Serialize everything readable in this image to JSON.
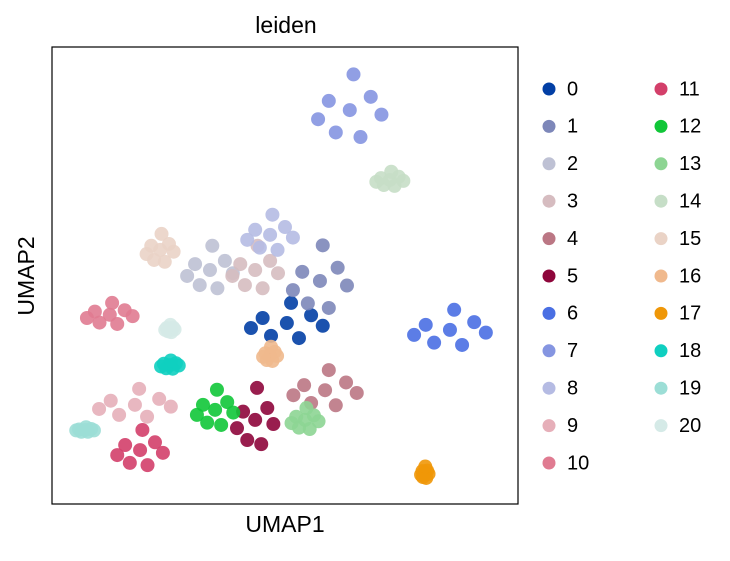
{
  "chart_data": {
    "type": "scatter",
    "title": "leiden",
    "x_label": "UMAP1",
    "y_label": "UMAP2",
    "xlim": [
      0,
      100
    ],
    "ylim": [
      0,
      100
    ],
    "legend": "right",
    "series": [
      {
        "name": "0",
        "color": "#023fa5",
        "x": [
          50.4,
          55.6,
          45.2,
          53.0,
          47.0,
          58.1,
          42.7,
          51.3
        ],
        "y": [
          39.6,
          41.3,
          40.7,
          36.3,
          36.8,
          39.0,
          38.5,
          44.0
        ]
      },
      {
        "name": "1",
        "color": "#7d87b9",
        "x": [
          57.5,
          61.3,
          53.7,
          59.4,
          54.9,
          63.3,
          51.7,
          58.1
        ],
        "y": [
          48.8,
          51.7,
          50.8,
          42.9,
          43.9,
          47.8,
          46.8,
          56.6
        ]
      },
      {
        "name": "2",
        "color": "#bec1d4",
        "x": [
          33.9,
          37.1,
          30.7,
          35.5,
          31.7,
          38.8,
          29.0,
          34.4
        ],
        "y": [
          51.2,
          53.2,
          52.5,
          47.2,
          47.9,
          50.5,
          49.9,
          56.5
        ]
      },
      {
        "name": "3",
        "color": "#d6bcc0",
        "x": [
          43.6,
          46.8,
          40.4,
          45.2,
          41.4,
          48.5,
          38.7,
          44.1
        ],
        "y": [
          51.2,
          53.2,
          52.5,
          47.2,
          47.9,
          50.5,
          49.9,
          56.5
        ]
      },
      {
        "name": "4",
        "color": "#bb7784",
        "x": [
          58.6,
          63.1,
          54.1,
          60.9,
          55.6,
          65.4,
          51.8,
          59.4
        ],
        "y": [
          24.9,
          26.6,
          26.0,
          21.6,
          22.1,
          24.3,
          23.8,
          29.3
        ]
      },
      {
        "name": "5",
        "color": "#8e063b",
        "x": [
          43.6,
          46.2,
          41.0,
          44.9,
          41.9,
          47.5,
          39.7,
          44.0
        ],
        "y": [
          18.4,
          21.0,
          20.2,
          13.1,
          14.0,
          17.5,
          16.6,
          25.4
        ]
      },
      {
        "name": "6",
        "color": "#4a6fe3",
        "x": [
          85.4,
          90.6,
          80.2,
          88.0,
          82.0,
          93.1,
          77.7,
          86.3
        ],
        "y": [
          38.1,
          39.8,
          39.2,
          34.8,
          35.3,
          37.5,
          37.0,
          42.5
        ]
      },
      {
        "name": "7",
        "color": "#8595e1",
        "x": [
          63.9,
          68.4,
          59.4,
          66.2,
          60.9,
          70.7,
          57.1,
          64.7
        ],
        "y": [
          86.2,
          89.1,
          88.2,
          80.3,
          81.3,
          85.2,
          84.2,
          94.0
        ]
      },
      {
        "name": "8",
        "color": "#b5bbe3",
        "x": [
          46.8,
          50.0,
          43.6,
          48.4,
          44.6,
          51.7,
          41.9,
          47.3
        ],
        "y": [
          58.9,
          60.6,
          60.0,
          55.6,
          56.1,
          58.3,
          57.8,
          63.3
        ]
      },
      {
        "name": "9",
        "color": "#e6afb9",
        "x": [
          17.8,
          23.0,
          12.6,
          20.4,
          14.4,
          25.5,
          10.1,
          18.7
        ],
        "y": [
          21.7,
          23.0,
          22.6,
          19.1,
          19.5,
          21.3,
          20.8,
          25.2
        ]
      },
      {
        "name": "10",
        "color": "#e07b91",
        "x": [
          12.4,
          15.6,
          9.2,
          14.0,
          10.2,
          17.3,
          7.5,
          12.9
        ],
        "y": [
          41.4,
          42.4,
          42.1,
          39.4,
          39.7,
          41.1,
          40.7,
          44.0
        ]
      },
      {
        "name": "11",
        "color": "#d33f6a",
        "x": [
          18.9,
          22.1,
          15.7,
          20.5,
          16.7,
          23.8,
          14.0,
          19.4
        ],
        "y": [
          11.8,
          13.5,
          12.9,
          8.5,
          9.0,
          11.2,
          10.7,
          16.2
        ]
      },
      {
        "name": "12",
        "color": "#11c638",
        "x": [
          35.0,
          37.6,
          32.4,
          36.3,
          33.3,
          38.9,
          31.1,
          35.4
        ],
        "y": [
          20.6,
          22.3,
          21.7,
          17.3,
          17.8,
          20.0,
          19.5,
          25.0
        ]
      },
      {
        "name": "13",
        "color": "#8dd593",
        "x": [
          54.3,
          56.2,
          52.4,
          55.3,
          53.0,
          57.2,
          51.4,
          54.6
        ],
        "y": [
          18.4,
          19.4,
          19.1,
          16.4,
          16.7,
          18.1,
          17.7,
          21.0
        ]
      },
      {
        "name": "14",
        "color": "#c6dec7",
        "x": [
          72.5,
          74.4,
          70.6,
          73.5,
          71.2,
          75.4,
          69.6,
          72.8
        ],
        "y": [
          70.9,
          71.6,
          71.3,
          69.6,
          69.8,
          70.7,
          70.5,
          72.7
        ]
      },
      {
        "name": "15",
        "color": "#ead3c6",
        "x": [
          23.2,
          25.1,
          21.3,
          24.2,
          21.9,
          26.1,
          20.3,
          23.5
        ],
        "y": [
          55.6,
          56.9,
          56.5,
          53.0,
          53.4,
          55.2,
          54.7,
          59.1
        ]
      },
      {
        "name": "16",
        "color": "#f0b98d",
        "x": [
          46.8,
          47.8,
          45.8,
          47.3,
          46.1,
          48.3,
          45.3,
          47.0
        ],
        "y": [
          32.6,
          33.3,
          33.0,
          31.3,
          31.5,
          32.4,
          32.2,
          34.4
        ]
      },
      {
        "name": "17",
        "color": "#ef9708",
        "x": [
          80.0,
          80.5,
          79.5,
          80.3,
          79.6,
          80.8,
          79.2,
          80.1
        ],
        "y": [
          6.8,
          7.3,
          7.2,
          5.7,
          5.9,
          6.6,
          6.4,
          8.2
        ]
      },
      {
        "name": "18",
        "color": "#0fcfc0",
        "x": [
          25.3,
          26.6,
          24.0,
          25.9,
          24.5,
          27.2,
          23.4,
          25.5
        ],
        "y": [
          30.4,
          30.8,
          30.7,
          29.6,
          29.7,
          30.3,
          30.1,
          31.4
        ]
      },
      {
        "name": "19",
        "color": "#9cded6",
        "x": [
          7.1,
          8.4,
          5.8,
          7.7,
          6.3,
          9.0,
          5.2,
          7.3
        ],
        "y": [
          16.2,
          16.4,
          16.3,
          15.8,
          15.8,
          16.1,
          16.1,
          16.8
        ]
      },
      {
        "name": "20",
        "color": "#d5eae7",
        "x": [
          25.3,
          26.0,
          24.6,
          25.6,
          24.9,
          26.3,
          24.3,
          25.4
        ],
        "y": [
          38.3,
          38.6,
          38.5,
          37.6,
          37.8,
          38.2,
          38.1,
          39.2
        ]
      }
    ]
  }
}
